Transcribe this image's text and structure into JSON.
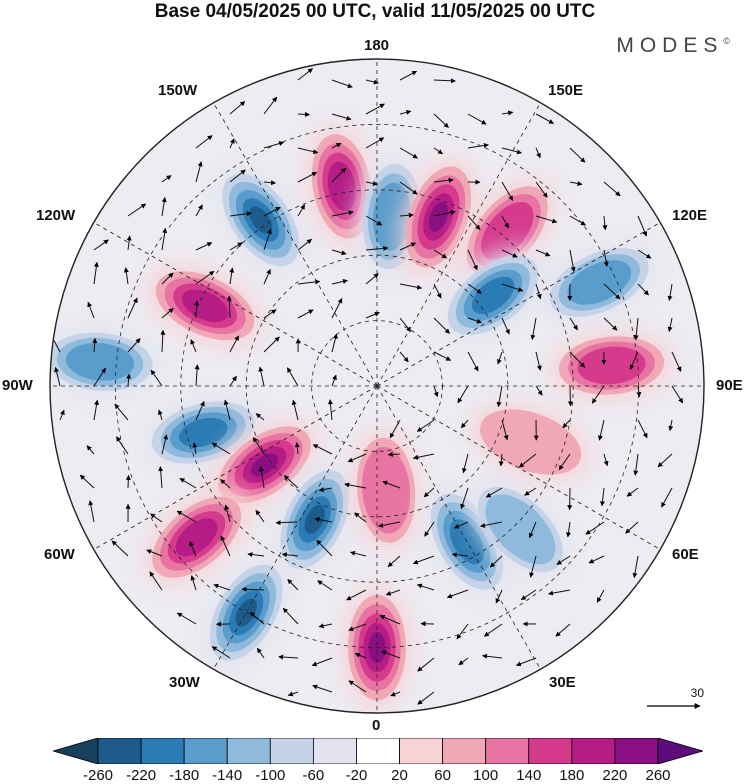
{
  "title": "Base 04/05/2025 00 UTC, valid 11/05/2025 00 UTC",
  "brand": "MODES",
  "brand_mark": "©",
  "longitude_labels": {
    "lon_180": "180",
    "lon_150w": "150W",
    "lon_150e": "150E",
    "lon_120w": "120W",
    "lon_120e": "120E",
    "lon_90w": "90W",
    "lon_90e": "90E",
    "lon_60w": "60W",
    "lon_60e": "60E",
    "lon_30w": "30W",
    "lon_30e": "30E",
    "lon_0": "0"
  },
  "reference_vector": "30",
  "colorbar": {
    "ticks": [
      "-260",
      "-220",
      "-180",
      "-140",
      "-100",
      "-60",
      "-20",
      "20",
      "60",
      "100",
      "140",
      "180",
      "220",
      "260"
    ],
    "colors": [
      "#17405e",
      "#1d5c8a",
      "#2b7bb4",
      "#5a9dcc",
      "#8fbadc",
      "#c4d3e8",
      "#e3e3ef",
      "#ffffff",
      "#f7d2d6",
      "#f0a7b6",
      "#e774a2",
      "#d63a8d",
      "#b51c86",
      "#8a0f80",
      "#5d0d79"
    ]
  },
  "anomalies": [
    {
      "lon": -145,
      "r": 0.62,
      "v": -280
    },
    {
      "lon": -170,
      "r": 0.62,
      "v": 180
    },
    {
      "lon": 175,
      "r": 0.52,
      "v": -130
    },
    {
      "lon": 160,
      "r": 0.55,
      "v": 210
    },
    {
      "lon": 140,
      "r": 0.62,
      "v": 150
    },
    {
      "lon": 128,
      "r": 0.45,
      "v": -170
    },
    {
      "lon": 115,
      "r": 0.75,
      "v": -150
    },
    {
      "lon": 95,
      "r": 0.72,
      "v": 120
    },
    {
      "lon": -115,
      "r": 0.58,
      "v": 190
    },
    {
      "lon": -95,
      "r": 0.85,
      "v": -120
    },
    {
      "lon": -75,
      "r": 0.55,
      "v": -170
    },
    {
      "lon": -55,
      "r": 0.42,
      "v": 200
    },
    {
      "lon": -50,
      "r": 0.72,
      "v": 170
    },
    {
      "lon": -25,
      "r": 0.45,
      "v": -200
    },
    {
      "lon": -30,
      "r": 0.8,
      "v": -230
    },
    {
      "lon": 5,
      "r": 0.32,
      "v": 100
    },
    {
      "lon": 0,
      "r": 0.8,
      "v": 210
    },
    {
      "lon": 30,
      "r": 0.55,
      "v": -170
    },
    {
      "lon": 45,
      "r": 0.62,
      "v": -110
    },
    {
      "lon": 70,
      "r": 0.5,
      "v": 60
    }
  ]
}
